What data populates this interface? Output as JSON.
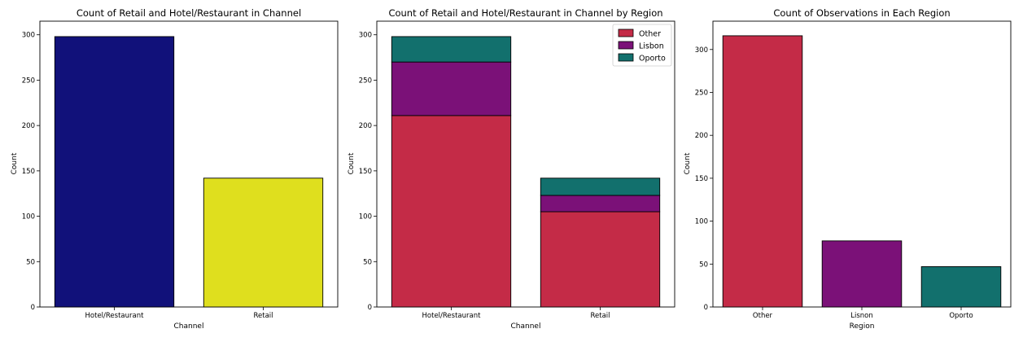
{
  "chart_data": [
    {
      "type": "bar",
      "title": "Count of Retail and Hotel/Restaurant in Channel",
      "xlabel": "Channel",
      "ylabel": "Count",
      "categories": [
        "Hotel/Restaurant",
        "Retail"
      ],
      "values": [
        298,
        142
      ],
      "colors": [
        "#11117a",
        "#dfdf1e"
      ],
      "ylim": [
        0,
        315
      ],
      "yticks": [
        0,
        50,
        100,
        150,
        200,
        250,
        300
      ],
      "grid": false
    },
    {
      "type": "bar",
      "stacked": true,
      "title": "Count of Retail and Hotel/Restaurant in Channel by Region",
      "xlabel": "Channel",
      "ylabel": "Count",
      "categories": [
        "Hotel/Restaurant",
        "Retail"
      ],
      "series": [
        {
          "name": "Other",
          "values": [
            211,
            105
          ],
          "color": "#c42b47"
        },
        {
          "name": "Lisbon",
          "values": [
            59,
            18
          ],
          "color": "#7b1178"
        },
        {
          "name": "Oporto",
          "values": [
            28,
            19
          ],
          "color": "#12706d"
        }
      ],
      "ylim": [
        0,
        315
      ],
      "yticks": [
        0,
        50,
        100,
        150,
        200,
        250,
        300
      ],
      "legend": "top-right",
      "grid": false
    },
    {
      "type": "bar",
      "title": "Count of Observations in Each Region",
      "xlabel": "Region",
      "ylabel": "Count",
      "categories": [
        "Other",
        "Lisnon",
        "Oporto"
      ],
      "values": [
        316,
        77,
        47
      ],
      "colors": [
        "#c42b47",
        "#7b1178",
        "#12706d"
      ],
      "ylim": [
        0,
        333
      ],
      "yticks": [
        0,
        50,
        100,
        150,
        200,
        250,
        300
      ],
      "grid": false
    }
  ]
}
